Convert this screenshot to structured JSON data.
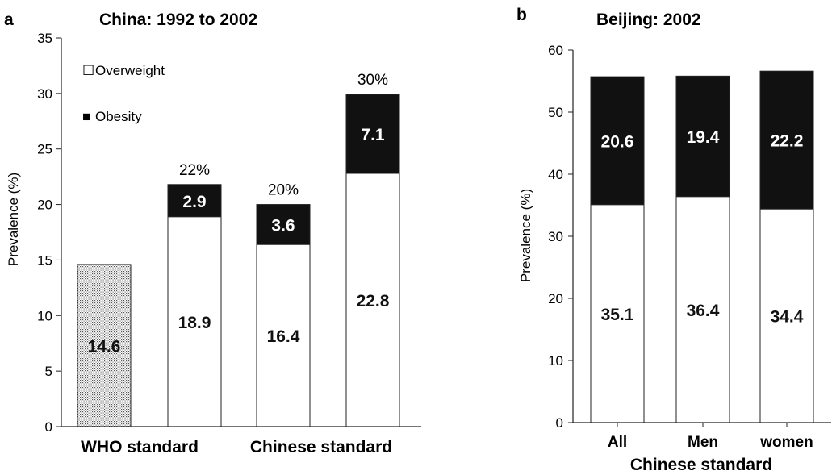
{
  "chart_data": [
    {
      "panel_label": "a",
      "title": "China: 1992 to 2002",
      "type": "bar",
      "stacked": true,
      "ylabel": "Prevalence (%)",
      "ylim": [
        0,
        35
      ],
      "yticks": [
        0,
        5,
        10,
        15,
        20,
        25,
        30,
        35
      ],
      "group_labels": [
        "WHO standard",
        "Chinese standard"
      ],
      "legend": [
        {
          "marker": "☐",
          "label": "Overweight",
          "color": "#ffffff"
        },
        {
          "marker": "■",
          "label": "Obesity",
          "color": "#111111"
        }
      ],
      "bars": [
        {
          "group": "WHO standard",
          "segments": [
            {
              "series": "WHO standard",
              "value": 14.6,
              "fill": "dotted",
              "label": "14.6"
            }
          ],
          "total_label": ""
        },
        {
          "group": "WHO standard",
          "segments": [
            {
              "series": "Overweight",
              "value": 18.9,
              "fill": "#ffffff",
              "label": "18.9"
            },
            {
              "series": "Obesity",
              "value": 2.9,
              "fill": "#111111",
              "label": "2.9"
            }
          ],
          "total_label": "22%"
        },
        {
          "group": "Chinese standard",
          "segments": [
            {
              "series": "Overweight",
              "value": 16.4,
              "fill": "#ffffff",
              "label": "16.4"
            },
            {
              "series": "Obesity",
              "value": 3.6,
              "fill": "#111111",
              "label": "3.6"
            }
          ],
          "total_label": "20%"
        },
        {
          "group": "Chinese standard",
          "segments": [
            {
              "series": "Overweight",
              "value": 22.8,
              "fill": "#ffffff",
              "label": "22.8"
            },
            {
              "series": "Obesity",
              "value": 7.1,
              "fill": "#111111",
              "label": "7.1"
            }
          ],
          "total_label": "30%"
        }
      ]
    },
    {
      "panel_label": "b",
      "title": "Beijing: 2002",
      "type": "bar",
      "stacked": true,
      "ylabel": "Prevalence (%)",
      "xlabel": "Chinese standard",
      "ylim": [
        0,
        60
      ],
      "yticks": [
        0,
        10,
        20,
        30,
        40,
        50,
        60
      ],
      "categories": [
        "All",
        "Men",
        "women"
      ],
      "series": [
        {
          "name": "Overweight",
          "values": [
            35.1,
            36.4,
            34.4
          ],
          "fill": "#ffffff",
          "labels": [
            "35.1",
            "36.4",
            "34.4"
          ]
        },
        {
          "name": "Obesity",
          "values": [
            20.6,
            19.4,
            22.2
          ],
          "fill": "#111111",
          "labels": [
            "20.6",
            "19.4",
            "22.2"
          ]
        }
      ]
    }
  ]
}
